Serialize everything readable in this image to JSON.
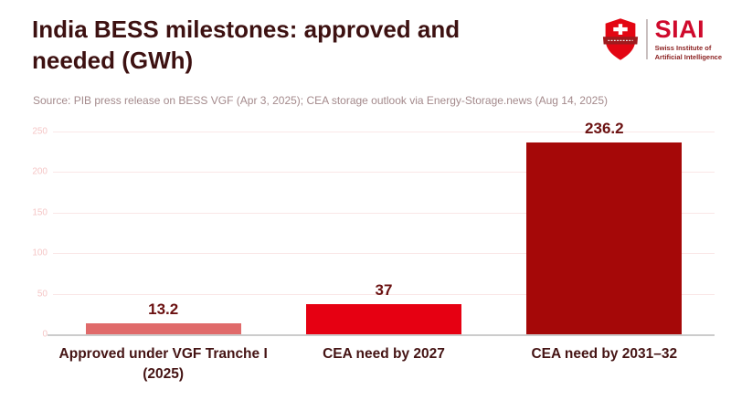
{
  "header": {
    "title": "India BESS milestones: approved and needed (GWh)",
    "source": "Source: PIB press release on BESS VGF (Apr 3, 2025); CEA storage outlook via Energy-Storage.news (Aug 14, 2025)"
  },
  "logo": {
    "name": "SIAI",
    "subtitle_line1": "Swiss Institute of",
    "subtitle_line2": "Artificial Intelligence",
    "brand_red": "#cf0a2c",
    "shield_red": "#e30613",
    "banner_red": "#9e1b1e"
  },
  "chart_data": {
    "type": "bar",
    "title": "India BESS milestones: approved and needed (GWh)",
    "categories": [
      "Approved under VGF Tranche I (2025)",
      "CEA need by 2027",
      "CEA need by 2031–32"
    ],
    "values": [
      13.2,
      37,
      236.2
    ],
    "value_labels": [
      "13.2",
      "37",
      "236.2"
    ],
    "bar_colors": [
      "#e06a6a",
      "#e60012",
      "#a50808"
    ],
    "xlabel": "",
    "ylabel": "",
    "ylim": [
      0,
      250
    ],
    "yticks": [
      0,
      50,
      100,
      150,
      200,
      250
    ],
    "grid": true,
    "legend": false,
    "gridline_color": "#fae7e7",
    "baseline_color": "#cccccc",
    "tick_label_color": "#f5c6c6",
    "value_label_color": "#6b1111",
    "category_label_color": "#451414"
  }
}
